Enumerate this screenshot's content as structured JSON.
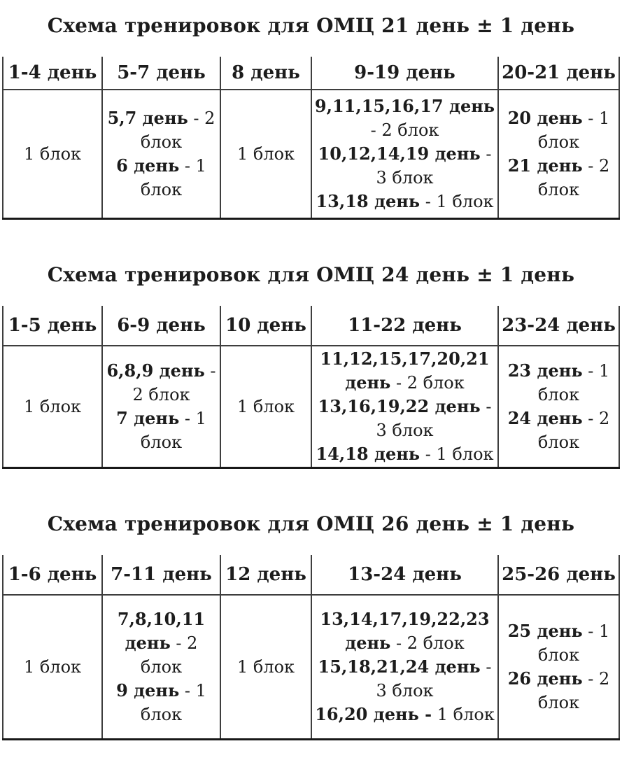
{
  "page": {
    "background": "#ffffff",
    "text_color": "#1c1c1c",
    "grid_line_color": "#3e3e3e",
    "bottom_rule_color": "#181818"
  },
  "tables": [
    {
      "title": "Схема тренировок для ОМЦ 21 день ± 1 день",
      "headers": [
        "1-4 день",
        "5-7 день",
        "8 день",
        "9-19 день",
        "20-21 день"
      ],
      "cells": [
        [
          {
            "b": "",
            "r": "1 блок"
          }
        ],
        [
          {
            "b": "5,7 день",
            "r": " - 2 блок"
          },
          {
            "b": "6 день",
            "r": " - 1 блок"
          }
        ],
        [
          {
            "b": "",
            "r": "1 блок"
          }
        ],
        [
          {
            "b": "9,11,15,16,17 день",
            "r": " - 2 блок"
          },
          {
            "b": "10,12,14,19 день",
            "r": " - 3 блок"
          },
          {
            "b": "13,18 день",
            "r": " - 1 блок"
          }
        ],
        [
          {
            "b": "20 день",
            "r": " - 1 блок"
          },
          {
            "b": "21 день",
            "r": " - 2 блок"
          }
        ]
      ]
    },
    {
      "title": "Схема тренировок для ОМЦ 24 день ± 1 день",
      "headers": [
        "1-5 день",
        "6-9 день",
        "10 день",
        "11-22 день",
        "23-24 день"
      ],
      "cells": [
        [
          {
            "b": "",
            "r": "1 блок"
          }
        ],
        [
          {
            "b": "6,8,9 день",
            "r": " - 2 блок"
          },
          {
            "b": "7 день",
            "r": " - 1 блок"
          }
        ],
        [
          {
            "b": "",
            "r": "1 блок"
          }
        ],
        [
          {
            "b": "11,12,15,17,20,21 день",
            "r": " - 2 блок"
          },
          {
            "b": "13,16,19,22 день",
            "r": " - 3 блок"
          },
          {
            "b": "14,18 день",
            "r": " - 1 блок"
          }
        ],
        [
          {
            "b": "23 день",
            "r": " - 1 блок"
          },
          {
            "b": "24 день",
            "r": " - 2 блок"
          }
        ]
      ]
    },
    {
      "title": "Схема тренировок для ОМЦ 26 день ± 1 день",
      "headers": [
        "1-6 день",
        "7-11 день",
        "12 день",
        "13-24 день",
        "25-26 день"
      ],
      "cells": [
        [
          {
            "b": "",
            "r": "1 блок"
          }
        ],
        [
          {
            "b": "7,8,10,11 день",
            "r": " - 2 блок"
          },
          {
            "b": "9 день",
            "r": " - 1 блок"
          }
        ],
        [
          {
            "b": "",
            "r": "1 блок"
          }
        ],
        [
          {
            "b": "13,14,17,19,22,23 день",
            "r": " - 2 блок"
          },
          {
            "b": "15,18,21,24 день",
            "r": " - 3 блок"
          },
          {
            "b": "16,20 день -",
            "r": " 1 блок"
          }
        ],
        [
          {
            "b": "25 день",
            "r": " - 1 блок"
          },
          {
            "b": "26 день",
            "r": " - 2 блок"
          }
        ]
      ]
    }
  ]
}
